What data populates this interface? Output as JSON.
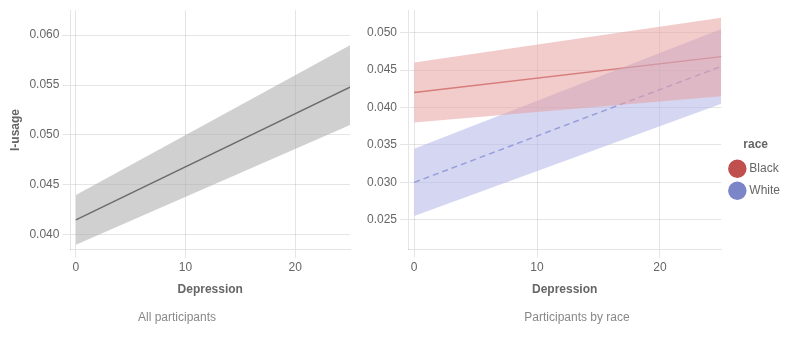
{
  "chart_data": [
    {
      "type": "line",
      "title": "All participants",
      "xlabel": "Depression",
      "ylabel": "I-usage",
      "x": [
        0,
        25
      ],
      "xlim": [
        -0.5,
        25
      ],
      "ylim": [
        0.0385,
        0.0625
      ],
      "xticks": [
        0,
        10,
        20
      ],
      "yticks": [
        {
          "value": 0.04,
          "label": "0.040"
        },
        {
          "value": 0.045,
          "label": "0.045"
        },
        {
          "value": 0.05,
          "label": "0.050"
        },
        {
          "value": 0.055,
          "label": "0.055"
        },
        {
          "value": 0.06,
          "label": "0.060"
        }
      ],
      "grid": true,
      "series": [
        {
          "color": "#222222",
          "band_color": "#aaaaaa",
          "values": [
            0.0415,
            0.0548
          ],
          "lower": [
            0.039,
            0.051
          ],
          "upper": [
            0.044,
            0.059
          ]
        }
      ]
    },
    {
      "type": "line",
      "title": "Participants by race",
      "xlabel": "Depression",
      "x": [
        0,
        25
      ],
      "xlim": [
        -0.5,
        25
      ],
      "ylim": [
        0.021,
        0.053
      ],
      "xticks": [
        0,
        10,
        20
      ],
      "yticks": [
        {
          "value": 0.025,
          "label": "0.025"
        },
        {
          "value": 0.03,
          "label": "0.030"
        },
        {
          "value": 0.035,
          "label": "0.035"
        },
        {
          "value": 0.04,
          "label": "0.040"
        },
        {
          "value": 0.045,
          "label": "0.045"
        },
        {
          "value": 0.05,
          "label": "0.050"
        }
      ],
      "grid": true,
      "legend": "right",
      "legend_title": "race",
      "series": [
        {
          "name": "Black",
          "color": "#c0504d",
          "band_color": "#e8a0a0",
          "line_style": "solid",
          "values": [
            0.042,
            0.0468
          ],
          "lower": [
            0.038,
            0.0415
          ],
          "upper": [
            0.046,
            0.052
          ]
        },
        {
          "name": "White",
          "color": "#7b86c9",
          "band_color": "#b0b4e8",
          "line_style": "dashed",
          "values": [
            0.03,
            0.0455
          ],
          "lower": [
            0.0255,
            0.0405
          ],
          "upper": [
            0.0345,
            0.0505
          ]
        }
      ]
    }
  ]
}
